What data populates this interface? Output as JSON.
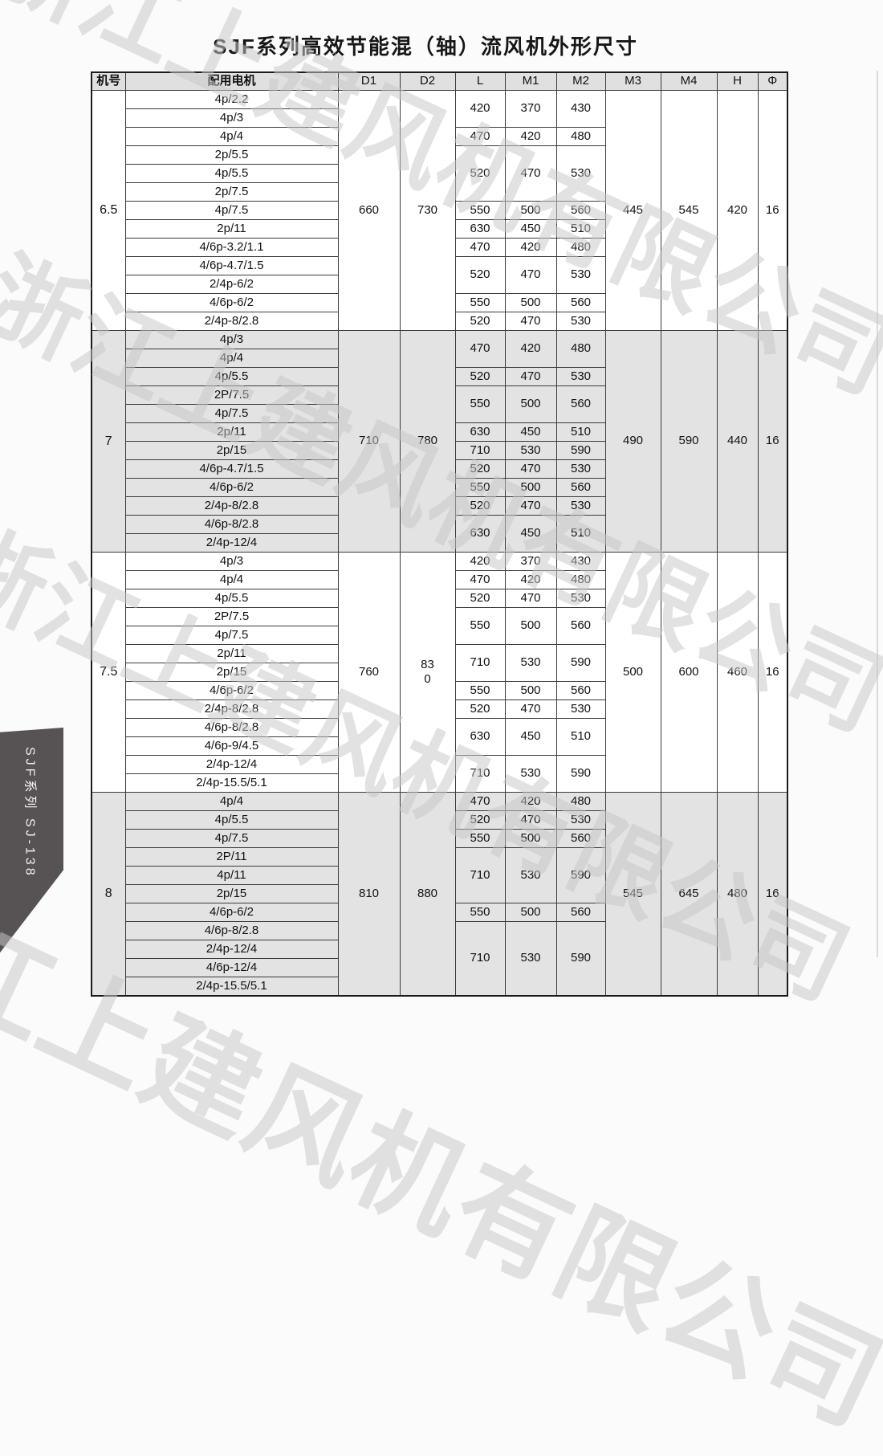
{
  "page": {
    "title": "SJF系列高效节能混（轴）流风机外形尺寸",
    "side_tab_label": "SJF系列  SJ-138",
    "watermark_text": "浙江上建风机有限公司",
    "colors": {
      "shaded_band": "#e3e3e3",
      "header_bg": "#e0e0e0",
      "tab_bg": "#575354",
      "watermark": "#c8c8c8",
      "border": "#3a3a3a"
    }
  },
  "table": {
    "headers": [
      "机号",
      "配用电机",
      "D1",
      "D2",
      "L",
      "M1",
      "M2",
      "M3",
      "M4",
      "H",
      "Φ"
    ],
    "groups": [
      {
        "model": "6.5",
        "shaded": false,
        "d1": "660",
        "d2": "730",
        "m3": "445",
        "m4": "545",
        "h": "420",
        "phi": "16",
        "motors": [
          "4p/2.2",
          "4p/3",
          "4p/4",
          "2p/5.5",
          "4p/5.5",
          "2p/7.5",
          "4p/7.5",
          "2p/11",
          "4/6p-3.2/1.1",
          "4/6p-4.7/1.5",
          "2/4p-6/2",
          "4/6p-6/2",
          "2/4p-8/2.8"
        ],
        "lmm": [
          {
            "span": 2,
            "l": "420",
            "m1": "370",
            "m2": "430"
          },
          {
            "span": 1,
            "l": "470",
            "m1": "420",
            "m2": "480"
          },
          {
            "span": 3,
            "l": "520",
            "m1": "470",
            "m2": "530"
          },
          {
            "span": 1,
            "l": "550",
            "m1": "500",
            "m2": "560"
          },
          {
            "span": 1,
            "l": "630",
            "m1": "450",
            "m2": "510"
          },
          {
            "span": 1,
            "l": "470",
            "m1": "420",
            "m2": "480"
          },
          {
            "span": 2,
            "l": "520",
            "m1": "470",
            "m2": "530"
          },
          {
            "span": 1,
            "l": "550",
            "m1": "500",
            "m2": "560"
          },
          {
            "span": 1,
            "l": "520",
            "m1": "470",
            "m2": "530"
          }
        ]
      },
      {
        "model": "7",
        "shaded": true,
        "d1": "710",
        "d2": "780",
        "m3": "490",
        "m4": "590",
        "h": "440",
        "phi": "16",
        "motors": [
          "4p/3",
          "4p/4",
          "4p/5.5",
          "2P/7.5",
          "4p/7.5",
          "2p/11",
          "2p/15",
          "4/6p-4.7/1.5",
          "4/6p-6/2",
          "2/4p-8/2.8",
          "4/6p-8/2.8",
          "2/4p-12/4"
        ],
        "lmm": [
          {
            "span": 2,
            "l": "470",
            "m1": "420",
            "m2": "480"
          },
          {
            "span": 1,
            "l": "520",
            "m1": "470",
            "m2": "530"
          },
          {
            "span": 2,
            "l": "550",
            "m1": "500",
            "m2": "560"
          },
          {
            "span": 1,
            "l": "630",
            "m1": "450",
            "m2": "510"
          },
          {
            "span": 1,
            "l": "710",
            "m1": "530",
            "m2": "590"
          },
          {
            "span": 1,
            "l": "520",
            "m1": "470",
            "m2": "530"
          },
          {
            "span": 1,
            "l": "550",
            "m1": "500",
            "m2": "560"
          },
          {
            "span": 1,
            "l": "520",
            "m1": "470",
            "m2": "530"
          },
          {
            "span": 2,
            "l": "630",
            "m1": "450",
            "m2": "510"
          }
        ]
      },
      {
        "model": "7.5",
        "shaded": false,
        "d1": "760",
        "d2": "830",
        "d2_wrap": true,
        "m3": "500",
        "m4": "600",
        "h": "460",
        "phi": "16",
        "motors": [
          "4p/3",
          "4p/4",
          "4p/5.5",
          "2P/7.5",
          "4p/7.5",
          "2p/11",
          "2p/15",
          "4/6p-6/2",
          "2/4p-8/2.8",
          "4/6p-8/2.8",
          "4/6p-9/4.5",
          "2/4p-12/4",
          "2/4p-15.5/5.1"
        ],
        "lmm": [
          {
            "span": 1,
            "l": "420",
            "m1": "370",
            "m2": "430"
          },
          {
            "span": 1,
            "l": "470",
            "m1": "420",
            "m2": "480"
          },
          {
            "span": 1,
            "l": "520",
            "m1": "470",
            "m2": "530"
          },
          {
            "span": 2,
            "l": "550",
            "m1": "500",
            "m2": "560"
          },
          {
            "span": 2,
            "l": "710",
            "m1": "530",
            "m2": "590"
          },
          {
            "span": 1,
            "l": "550",
            "m1": "500",
            "m2": "560"
          },
          {
            "span": 1,
            "l": "520",
            "m1": "470",
            "m2": "530"
          },
          {
            "span": 2,
            "l": "630",
            "m1": "450",
            "m2": "510"
          },
          {
            "span": 2,
            "l": "710",
            "m1": "530",
            "m2": "590"
          }
        ]
      },
      {
        "model": "8",
        "shaded": true,
        "d1": "810",
        "d2": "880",
        "m3": "545",
        "m4": "645",
        "h": "480",
        "phi": "16",
        "motors": [
          "4p/4",
          "4p/5.5",
          "4p/7.5",
          "2P/11",
          "4p/11",
          "2p/15",
          "4/6p-6/2",
          "4/6p-8/2.8",
          "2/4p-12/4",
          "4/6p-12/4",
          "2/4p-15.5/5.1"
        ],
        "lmm": [
          {
            "span": 1,
            "l": "470",
            "m1": "420",
            "m2": "480"
          },
          {
            "span": 1,
            "l": "520",
            "m1": "470",
            "m2": "530"
          },
          {
            "span": 1,
            "l": "550",
            "m1": "500",
            "m2": "560"
          },
          {
            "span": 3,
            "l": "710",
            "m1": "530",
            "m2": "590"
          },
          {
            "span": 1,
            "l": "550",
            "m1": "500",
            "m2": "560"
          },
          {
            "span": 4,
            "l": "710",
            "m1": "530",
            "m2": "590"
          }
        ]
      }
    ]
  }
}
